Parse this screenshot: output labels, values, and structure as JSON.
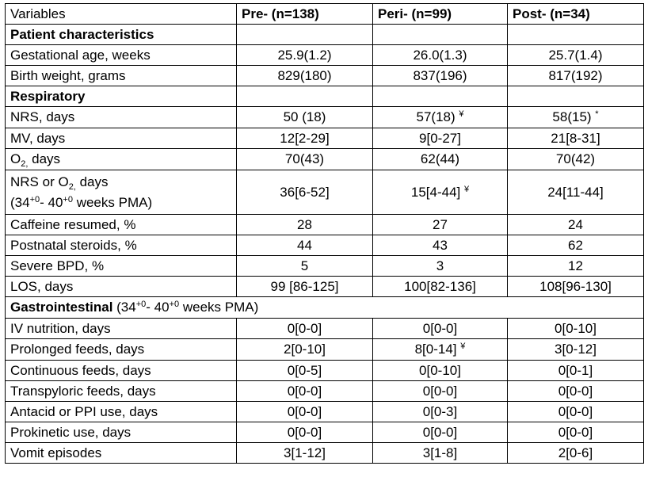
{
  "header": {
    "variables": "Variables",
    "pre": "Pre- (n=138)",
    "peri": "Peri- (n=99)",
    "post": "Post- (n=34)"
  },
  "sections": {
    "patient": "Patient characteristics",
    "respiratory": "Respiratory",
    "gi_bold": "Gastrointestinal",
    "gi_a": " (34",
    "gi_sup1": "+0",
    "gi_b": "- 40",
    "gi_sup2": "+0",
    "gi_c": " weeks PMA)"
  },
  "rows": {
    "ga": {
      "label": "Gestational age, weeks",
      "pre": "25.9(1.2)",
      "peri": "26.0(1.3)",
      "post": "25.7(1.4)"
    },
    "bw": {
      "label": "Birth weight, grams",
      "pre": "829(180)",
      "peri": "837(196)",
      "post": "817(192)"
    },
    "nrs": {
      "label": "NRS, days",
      "pre": "50 (18)",
      "peri": "57(18)",
      "peri_mark": "¥",
      "post": "58(15)",
      "post_mark": "*"
    },
    "mv": {
      "label": "MV, days",
      "pre": "12[2-29]",
      "peri": "9[0-27]",
      "post": "21[8-31]"
    },
    "o2": {
      "label_a": "O",
      "label_sub": "2,",
      "label_b": " days",
      "pre": "70(43)",
      "peri": "62(44)",
      "post": "70(42)"
    },
    "nrso2": {
      "line1_a": "NRS or O",
      "line1_sub": "2,",
      "line1_b": " days",
      "line2_a": "(34",
      "line2_sup1": "+0",
      "line2_b": "- 40",
      "line2_sup2": "+0",
      "line2_c": " weeks PMA)",
      "pre": "36[6-52]",
      "peri": "15[4-44]",
      "peri_mark": "¥",
      "post": "24[11-44]"
    },
    "caffeine": {
      "label": "Caffeine resumed, %",
      "pre": "28",
      "peri": "27",
      "post": "24"
    },
    "steroids": {
      "label": "Postnatal steroids, %",
      "pre": "44",
      "peri": "43",
      "post": "62"
    },
    "bpd": {
      "label": "Severe BPD, %",
      "pre": "5",
      "peri": "3",
      "post": "12"
    },
    "los": {
      "label": "LOS, days",
      "pre": "99 [86-125]",
      "peri": "100[82-136]",
      "post": "108[96-130]"
    },
    "iv": {
      "label": "IV nutrition, days",
      "pre": "0[0-0]",
      "peri": "0[0-0]",
      "post": "0[0-10]"
    },
    "prolonged": {
      "label": "Prolonged feeds, days",
      "pre": "2[0-10]",
      "peri": "8[0-14]",
      "peri_mark": "¥",
      "post": "3[0-12]"
    },
    "continuous": {
      "label": "Continuous feeds, days",
      "pre": "0[0-5]",
      "peri": "0[0-10]",
      "post": "0[0-1]"
    },
    "transpyloric": {
      "label": "Transpyloric feeds, days",
      "pre": "0[0-0]",
      "peri": "0[0-0]",
      "post": "0[0-0]"
    },
    "antacid": {
      "label": "Antacid or PPI use, days",
      "pre": "0[0-0]",
      "peri": "0[0-3]",
      "post": "0[0-0]"
    },
    "prokinetic": {
      "label": "Prokinetic use, days",
      "pre": "0[0-0]",
      "peri": "0[0-0]",
      "post": "0[0-0]"
    },
    "vomit": {
      "label": "Vomit episodes",
      "pre": "3[1-12]",
      "peri": "3[1-8]",
      "post": "2[0-6]"
    }
  }
}
